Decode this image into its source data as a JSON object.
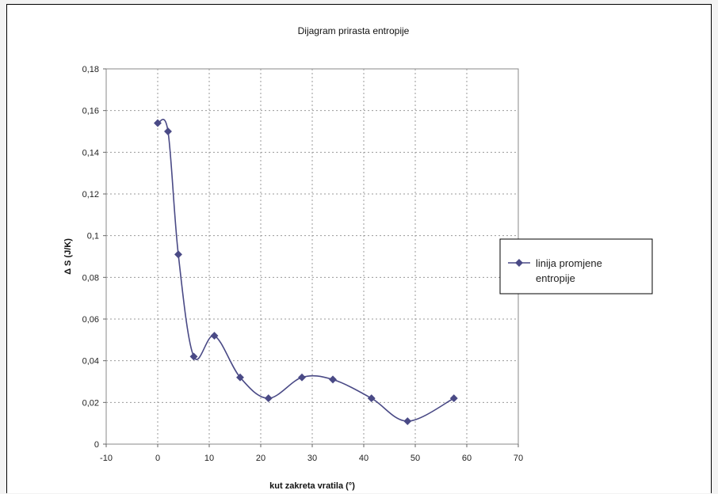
{
  "chart_data": {
    "type": "line",
    "title": "Dijagram prirasta entropije",
    "xlabel": "kut zakreta vratila (°)",
    "ylabel": "Δ S (J/K)",
    "xlim": [
      -10,
      70
    ],
    "ylim": [
      0,
      0.18
    ],
    "x_ticks": [
      -10,
      0,
      10,
      20,
      30,
      40,
      50,
      60,
      70
    ],
    "y_ticks": [
      0,
      0.02,
      0.04,
      0.06,
      0.08,
      0.1,
      0.12,
      0.14,
      0.16,
      0.18
    ],
    "x_tick_labels": [
      "-10",
      "0",
      "10",
      "20",
      "30",
      "40",
      "50",
      "60",
      "70"
    ],
    "y_tick_labels": [
      "0",
      "0,02",
      "0,04",
      "0,06",
      "0,08",
      "0,1",
      "0,12",
      "0,14",
      "0,16",
      "0,18"
    ],
    "grid": true,
    "smooth": true,
    "legend_position": "right",
    "line_color": "#4a4a86",
    "series": [
      {
        "name": "linija promjene entropije",
        "x": [
          0,
          2,
          4,
          7,
          11,
          16,
          21.5,
          28,
          34,
          41.5,
          48.5,
          57.5
        ],
        "y": [
          0.154,
          0.15,
          0.091,
          0.042,
          0.052,
          0.032,
          0.022,
          0.032,
          0.031,
          0.022,
          0.011,
          0.022
        ]
      }
    ]
  },
  "legend": {
    "line1": "linija promjene",
    "line2": "entropije"
  }
}
